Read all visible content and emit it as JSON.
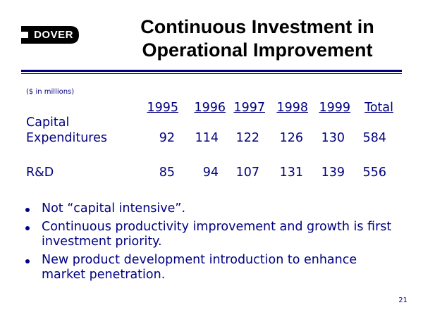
{
  "logo": {
    "text": "DOVER"
  },
  "title": {
    "line1": "Continuous Investment in",
    "line2": "Operational Improvement"
  },
  "note": "($ in millions)",
  "table": {
    "headers": [
      "1995",
      "1996",
      "1997",
      "1998",
      "1999",
      "Total"
    ],
    "rows": [
      {
        "label_line1": "Capital",
        "label_line2": "Expenditures",
        "values": [
          "92",
          "114",
          "122",
          "126",
          "130",
          "584"
        ]
      },
      {
        "label_line1": "R&D",
        "values": [
          "85",
          "94",
          "107",
          "131",
          "139",
          "556"
        ]
      }
    ]
  },
  "bullets": [
    "Not “capital intensive”.",
    "Continuous productivity improvement and growth is first investment priority.",
    "New product development introduction to enhance market penetration."
  ],
  "page_number": "21",
  "colors": {
    "text": "#000080",
    "title": "#000000",
    "rule": "#000080"
  }
}
